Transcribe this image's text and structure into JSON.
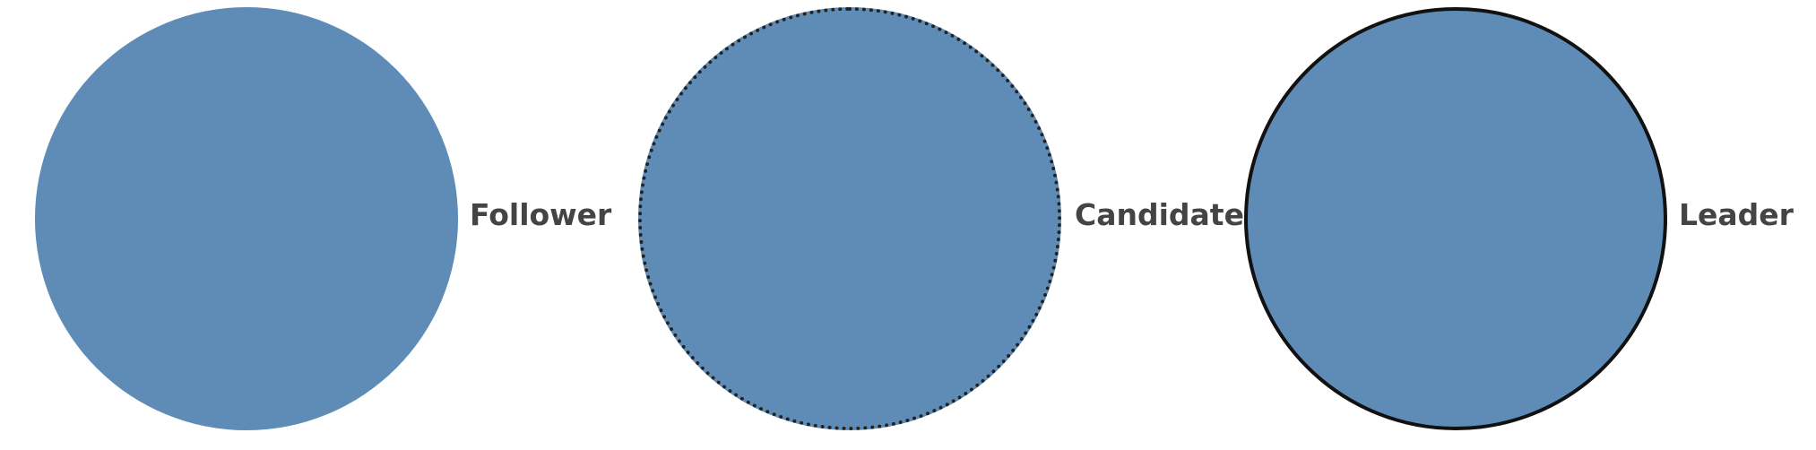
{
  "states": [
    {
      "label": "Follower",
      "border": "none",
      "fill_color": "#5f8cb7"
    },
    {
      "label": "Candidate",
      "border": "dotted",
      "fill_color": "#5f8cb7"
    },
    {
      "label": "Leader",
      "border": "solid",
      "fill_color": "#5f8cb7"
    }
  ],
  "colors": {
    "node_fill": "#5f8cb7",
    "label_text": "#444444",
    "background": "#ffffff"
  }
}
